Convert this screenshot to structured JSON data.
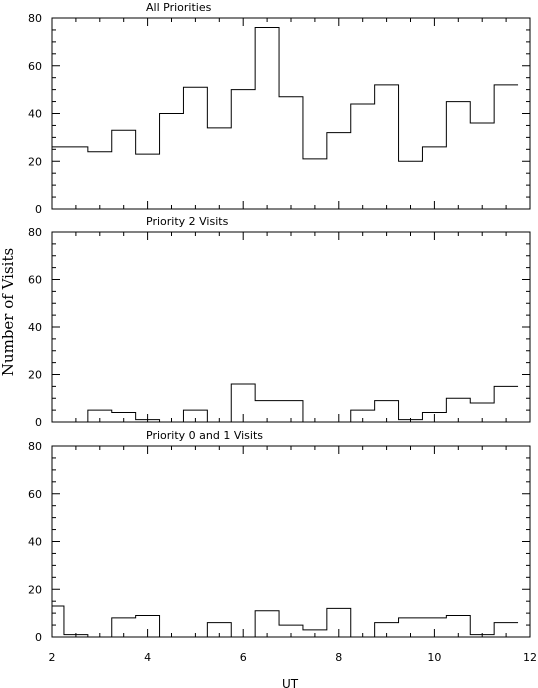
{
  "figure": {
    "ylabel": "Number of Visits",
    "xlabel": "UT",
    "x_ticks": [
      "2",
      "4",
      "6",
      "8",
      "10",
      "12"
    ]
  },
  "chart_data": [
    {
      "type": "histogram",
      "title": "All Priorities",
      "xlim": [
        2,
        12
      ],
      "ylim": [
        0,
        80
      ],
      "y_ticks": [
        "0",
        "20",
        "40",
        "60",
        "80"
      ],
      "bin_edges": [
        2,
        2.75,
        3.25,
        3.75,
        4.25,
        4.75,
        5.25,
        5.75,
        6.25,
        6.75,
        7.25,
        7.75,
        8.25,
        8.75,
        9.25,
        9.75,
        10.25,
        10.75,
        11.25,
        11.75
      ],
      "values": [
        26,
        24,
        33,
        23,
        40,
        51,
        34,
        50,
        76,
        47,
        21,
        32,
        44,
        52,
        20,
        26,
        45,
        36,
        52
      ]
    },
    {
      "type": "histogram",
      "title": "Priority 2 Visits",
      "xlim": [
        2,
        12
      ],
      "ylim": [
        0,
        80
      ],
      "y_ticks": [
        "0",
        "20",
        "40",
        "60",
        "80"
      ],
      "bin_edges": [
        2,
        2.75,
        3.25,
        3.75,
        4.25,
        4.75,
        5.25,
        5.75,
        6.25,
        6.75,
        7.25,
        7.75,
        8.25,
        8.75,
        9.25,
        9.75,
        10.25,
        10.75,
        11.25,
        11.75
      ],
      "values": [
        0,
        5,
        4,
        1,
        0,
        5,
        0,
        16,
        9,
        9,
        0,
        0,
        5,
        9,
        1,
        4,
        10,
        8,
        15
      ]
    },
    {
      "type": "histogram",
      "title": "Priority 0 and 1 Visits",
      "xlim": [
        2,
        12
      ],
      "ylim": [
        0,
        80
      ],
      "y_ticks": [
        "0",
        "20",
        "40",
        "60",
        "80"
      ],
      "bin_edges": [
        2,
        2.25,
        2.75,
        3.25,
        3.75,
        4.25,
        4.75,
        5.25,
        5.75,
        6.25,
        6.75,
        7.25,
        7.75,
        8.25,
        8.75,
        9.25,
        9.75,
        10.25,
        10.75,
        11.25,
        11.75
      ],
      "values": [
        13,
        1,
        0,
        8,
        9,
        0,
        0,
        6,
        0,
        11,
        5,
        3,
        12,
        0,
        6,
        8,
        8,
        9,
        1,
        6
      ]
    }
  ]
}
